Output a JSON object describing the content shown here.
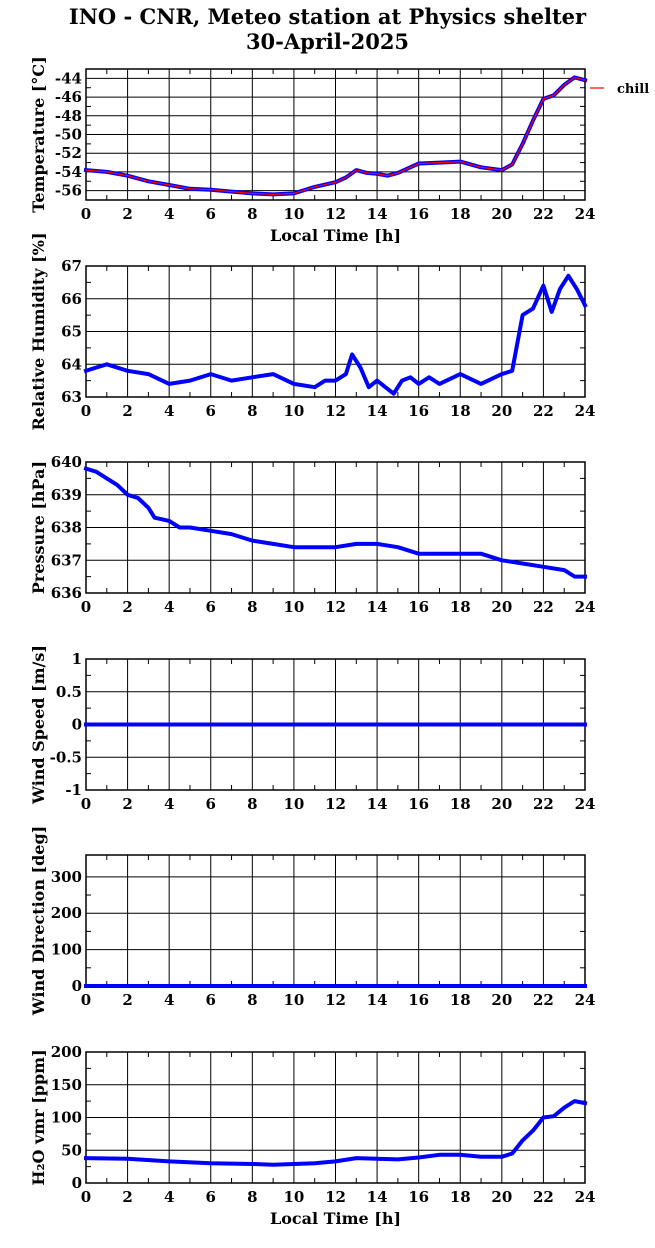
{
  "title_line1": "INO - CNR, Meteo station at Physics shelter",
  "title_line2": "30-April-2025",
  "colors": {
    "series": "#0000ff",
    "overlay": "#ff0000",
    "grid": "#000000"
  },
  "chart_data": [
    {
      "id": "temperature",
      "type": "line",
      "ylabel": "Temperature [°C]",
      "xlabel": "Local Time [h]",
      "xlim": [
        0,
        24
      ],
      "ylim": [
        -57,
        -43
      ],
      "xticks": [
        "0",
        "2",
        "4",
        "6",
        "8",
        "10",
        "12",
        "14",
        "16",
        "18",
        "20",
        "22",
        "24"
      ],
      "yticks": [
        -56,
        -54,
        -52,
        -50,
        -48,
        -46,
        -44
      ],
      "ytick_labels": [
        "-56",
        "-54",
        "-52",
        "-50",
        "-48",
        "-46",
        "-44"
      ],
      "legend": {
        "label": "chill",
        "placement": "right-outside-top"
      },
      "x": [
        0,
        1,
        2,
        3,
        4,
        5,
        6,
        7,
        8,
        9,
        10,
        11,
        12,
        12.5,
        13,
        13.5,
        14,
        14.5,
        15,
        16,
        17,
        18,
        19,
        20,
        20.5,
        21,
        21.5,
        22,
        22.5,
        23,
        23.5,
        24
      ],
      "y": [
        -53.8,
        -54.0,
        -54.4,
        -55.0,
        -55.4,
        -55.8,
        -55.9,
        -56.1,
        -56.3,
        -56.4,
        -56.3,
        -55.6,
        -55.1,
        -54.6,
        -53.8,
        -54.1,
        -54.2,
        -54.4,
        -54.1,
        -53.1,
        -53.0,
        -52.9,
        -53.5,
        -53.8,
        -53.2,
        -51.0,
        -48.5,
        -46.2,
        -45.8,
        -44.7,
        -43.9,
        -44.2
      ],
      "series_name": "chill"
    },
    {
      "id": "humidity",
      "type": "line",
      "ylabel": "Relative Humidity [%]",
      "xlabel": "",
      "xlim": [
        0,
        24
      ],
      "ylim": [
        63,
        67
      ],
      "xticks": [
        "0",
        "2",
        "4",
        "6",
        "8",
        "10",
        "12",
        "14",
        "16",
        "18",
        "20",
        "22",
        "24"
      ],
      "yticks": [
        63,
        64,
        65,
        66,
        67
      ],
      "ytick_labels": [
        "63",
        "64",
        "65",
        "66",
        "67"
      ],
      "x": [
        0,
        0.5,
        1,
        2,
        3,
        4,
        5,
        6,
        7,
        8,
        9,
        10,
        11,
        11.5,
        12,
        12.5,
        12.8,
        13.2,
        13.6,
        14,
        14.4,
        14.8,
        15.2,
        15.6,
        16,
        16.5,
        17,
        18,
        19,
        20,
        20.5,
        21,
        21.5,
        22,
        22.4,
        22.8,
        23.2,
        23.6,
        24
      ],
      "y": [
        63.8,
        63.9,
        64.0,
        63.8,
        63.7,
        63.4,
        63.5,
        63.7,
        63.5,
        63.6,
        63.7,
        63.4,
        63.3,
        63.5,
        63.5,
        63.7,
        64.3,
        63.9,
        63.3,
        63.5,
        63.3,
        63.1,
        63.5,
        63.6,
        63.4,
        63.6,
        63.4,
        63.7,
        63.4,
        63.7,
        63.8,
        65.5,
        65.7,
        66.4,
        65.6,
        66.3,
        66.7,
        66.3,
        65.8
      ]
    },
    {
      "id": "pressure",
      "type": "line",
      "ylabel": "Pressure [hPa]",
      "xlabel": "",
      "xlim": [
        0,
        24
      ],
      "ylim": [
        636,
        640
      ],
      "xticks": [
        "0",
        "2",
        "4",
        "6",
        "8",
        "10",
        "12",
        "14",
        "16",
        "18",
        "20",
        "22",
        "24"
      ],
      "yticks": [
        636,
        637,
        638,
        639,
        640
      ],
      "ytick_labels": [
        "636",
        "637",
        "638",
        "639",
        "640"
      ],
      "x": [
        0,
        0.5,
        1,
        1.5,
        2,
        2.5,
        3,
        3.3,
        4,
        4.5,
        5,
        6,
        7,
        8,
        9,
        10,
        11,
        12,
        13,
        14,
        15,
        16,
        17,
        18,
        19,
        20,
        21,
        22,
        23,
        23.5,
        24
      ],
      "y": [
        639.8,
        639.7,
        639.5,
        639.3,
        639.0,
        638.9,
        638.6,
        638.3,
        638.2,
        638.0,
        638.0,
        637.9,
        637.8,
        637.6,
        637.5,
        637.4,
        637.4,
        637.4,
        637.5,
        637.5,
        637.4,
        637.2,
        637.2,
        637.2,
        637.2,
        637.0,
        636.9,
        636.8,
        636.7,
        636.5,
        636.5
      ]
    },
    {
      "id": "wind_speed",
      "type": "line",
      "ylabel": "Wind Speed [m/s]",
      "xlabel": "",
      "xlim": [
        0,
        24
      ],
      "ylim": [
        -1,
        1
      ],
      "xticks": [
        "0",
        "2",
        "4",
        "6",
        "8",
        "10",
        "12",
        "14",
        "16",
        "18",
        "20",
        "22",
        "24"
      ],
      "yticks": [
        -1,
        -0.5,
        0,
        0.5,
        1
      ],
      "ytick_labels": [
        "-1",
        "-0.5",
        "0",
        "0.5",
        "1"
      ],
      "x": [
        0,
        24
      ],
      "y": [
        0,
        0
      ]
    },
    {
      "id": "wind_direction",
      "type": "line",
      "ylabel": "Wind Direction [deg]",
      "xlabel": "",
      "xlim": [
        0,
        24
      ],
      "ylim": [
        0,
        360
      ],
      "xticks": [
        "0",
        "2",
        "4",
        "6",
        "8",
        "10",
        "12",
        "14",
        "16",
        "18",
        "20",
        "22",
        "24"
      ],
      "yticks": [
        0,
        100,
        200,
        300
      ],
      "ytick_labels": [
        "0",
        "100",
        "200",
        "300"
      ],
      "x": [
        0,
        24
      ],
      "y": [
        0,
        0
      ]
    },
    {
      "id": "h2o_vmr",
      "type": "line",
      "ylabel": "H₂O vmr [ppm]",
      "xlabel": "Local Time [h]",
      "xlim": [
        0,
        24
      ],
      "ylim": [
        0,
        200
      ],
      "xticks": [
        "0",
        "2",
        "4",
        "6",
        "8",
        "10",
        "12",
        "14",
        "16",
        "18",
        "20",
        "22",
        "24"
      ],
      "yticks": [
        0,
        50,
        100,
        150,
        200
      ],
      "ytick_labels": [
        "0",
        "50",
        "100",
        "150",
        "200"
      ],
      "x": [
        0,
        2,
        4,
        6,
        8,
        9,
        10,
        11,
        12,
        13,
        14,
        15,
        16,
        17,
        18,
        19,
        20,
        20.5,
        21,
        21.5,
        22,
        22.5,
        23,
        23.5,
        24
      ],
      "y": [
        38,
        37,
        33,
        30,
        29,
        28,
        29,
        30,
        33,
        38,
        37,
        36,
        39,
        43,
        43,
        40,
        40,
        45,
        65,
        80,
        100,
        102,
        115,
        125,
        122
      ]
    }
  ]
}
